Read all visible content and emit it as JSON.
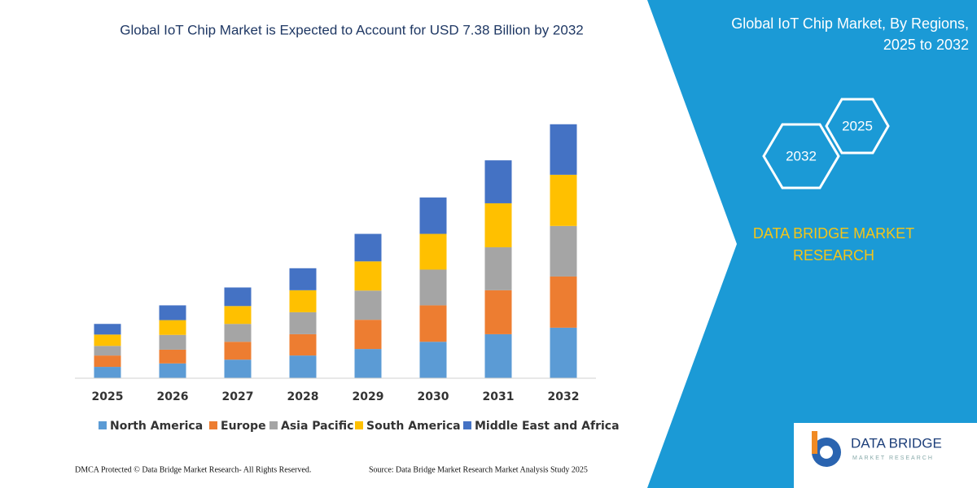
{
  "chart_data": {
    "type": "stacked-bar",
    "title": "Global IoT Chip Market is Expected to Account for USD 7.38 Billion by 2032",
    "categories": [
      "2025",
      "2026",
      "2027",
      "2028",
      "2029",
      "2030",
      "2031",
      "2032"
    ],
    "series": [
      {
        "name": "North America",
        "color": "#5b9bd5",
        "values": [
          0.33,
          0.43,
          0.54,
          0.66,
          0.85,
          1.06,
          1.28,
          1.47
        ]
      },
      {
        "name": "Europe",
        "color": "#ed7d31",
        "values": [
          0.33,
          0.4,
          0.52,
          0.62,
          0.85,
          1.06,
          1.28,
          1.49
        ]
      },
      {
        "name": "Asia Pacific",
        "color": "#a5a5a5",
        "values": [
          0.28,
          0.43,
          0.52,
          0.64,
          0.85,
          1.04,
          1.25,
          1.47
        ]
      },
      {
        "name": "South America",
        "color": "#ffc000",
        "values": [
          0.33,
          0.43,
          0.52,
          0.64,
          0.85,
          1.04,
          1.28,
          1.49
        ]
      },
      {
        "name": "Middle East and Africa",
        "color": "#4472c4",
        "values": [
          0.31,
          0.43,
          0.54,
          0.64,
          0.8,
          1.06,
          1.25,
          1.47
        ]
      }
    ],
    "ylim": [
      0,
      8
    ]
  },
  "panel": {
    "title": [
      "Global IoT Chip Market, By Regions,",
      "2025 to 2032"
    ],
    "hexagons": [
      "2025",
      "2032"
    ],
    "brand": [
      "DATA BRIDGE MARKET",
      "RESEARCH"
    ]
  },
  "logo": {
    "name": "DATA BRIDGE",
    "tagline": "MARKET RESEARCH"
  },
  "footer": {
    "left": "DMCA Protected © Data Bridge Market Research-  All Rights Reserved.",
    "right": "Source: Data Bridge Market Research  Market Analysis Study 2025"
  }
}
